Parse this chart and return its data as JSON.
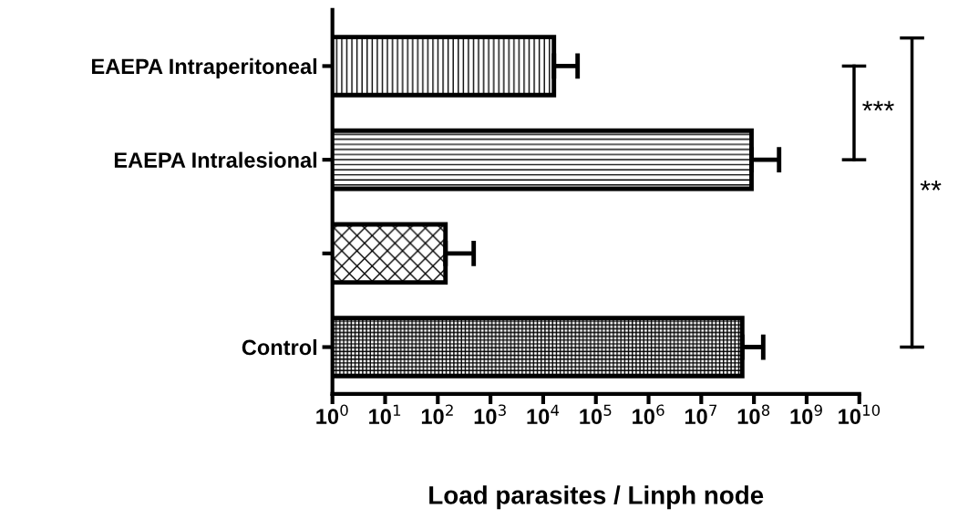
{
  "chart_data": {
    "type": "bar",
    "orientation": "horizontal",
    "log": "x",
    "xlabel": "Load parasites / Linph node",
    "categories": [
      "EAEPA Intraperitoneal",
      "EAEPA Intralesional",
      null,
      "Control"
    ],
    "values": [
      16000,
      90000000,
      140,
      60000000
    ],
    "errors": [
      [
        16000,
        45000
      ],
      [
        90000000,
        300000000
      ],
      [
        140,
        480
      ],
      [
        60000000,
        150000000
      ]
    ],
    "color": "#000000",
    "xlim": [
      1,
      10000000000
    ],
    "xticks": [
      {
        "value": 1,
        "label": "10$^{0}$"
      },
      {
        "value": 10,
        "label": "10$^{1}$"
      },
      {
        "value": 100,
        "label": "10$^{2}$"
      },
      {
        "value": 1000,
        "label": "10$^{3}$"
      },
      {
        "value": 10000,
        "label": "10$^{4}$"
      },
      {
        "value": 100000,
        "label": "10$^{5}$"
      },
      {
        "value": 1000000,
        "label": "10$^{6}$"
      },
      {
        "value": 10000000,
        "label": "10$^{7}$"
      },
      {
        "value": 100000000,
        "label": "10$^{8}$"
      },
      {
        "value": 1000000000,
        "label": "10$^{9}$"
      },
      {
        "value": 10000000000,
        "label": "10$^{10}$"
      }
    ],
    "annotations": [
      "***",
      "**"
    ],
    "grid": false
  }
}
